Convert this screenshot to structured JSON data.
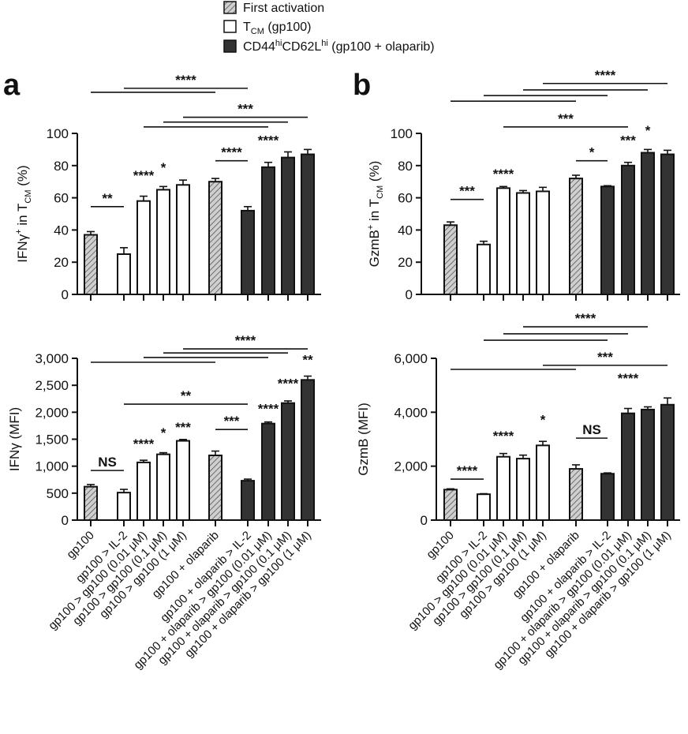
{
  "legend": {
    "items": [
      {
        "label": "First activation",
        "style": "hatched"
      },
      {
        "main": "T",
        "sub": "CM",
        "end": " (gp100)",
        "style": "white"
      },
      {
        "main": "CD44",
        "sup1": "hi",
        "mid": "CD62L",
        "sup2": "hi",
        "end": " (gp100 + olaparib)",
        "style": "dark"
      }
    ]
  },
  "panels": [
    "a",
    "b"
  ],
  "colors": {
    "hatched_fill": "#cfcfcf",
    "dark_fill": "#333333",
    "white_fill": "#ffffff",
    "triangle_points": "#8c8c8c",
    "stroke": "#111111"
  },
  "chart_data": [
    {
      "type": "bar",
      "panel": "a",
      "ylabel": {
        "main": "IFNγ",
        "sup": "+",
        "mid": " in T",
        "sub": "CM",
        "end": " (%)"
      },
      "ylim": [
        0,
        100
      ],
      "yticks": [
        {
          "v": 0,
          "label": "0"
        },
        {
          "v": 20,
          "label": "20"
        },
        {
          "v": 40,
          "label": "40"
        },
        {
          "v": 60,
          "label": "60"
        },
        {
          "v": 80,
          "label": "80"
        },
        {
          "v": 100,
          "label": "100"
        }
      ],
      "categories": [
        "gp100",
        "gp100 > IL-2",
        "gp100 > gp100 (0.01 μM)",
        "gp100 > gp100 (0.1 μM)",
        "gp100 > gp100 (1 μM)",
        "gp100 + olaparib",
        "gp100 + olaparib > IL-2",
        "gp100 + olaparib > gp100 (0.01 μM)",
        "gp100 + olaparib > gp100 (0.1 μM)",
        "gp100 + olaparib > gp100 (1 μM)"
      ],
      "styles": [
        "hatched",
        "white",
        "white",
        "white",
        "white",
        "hatched",
        "dark",
        "dark",
        "dark",
        "dark"
      ],
      "show_category_labels": false,
      "values": [
        37,
        25,
        58,
        65,
        68,
        70,
        52,
        79,
        85,
        87
      ],
      "sem": [
        2,
        4,
        3,
        2,
        3,
        2,
        2.5,
        3,
        3.5,
        3
      ],
      "brackets": [
        {
          "from": 0,
          "to": 5,
          "y": 125.5,
          "label": ""
        },
        {
          "from": 1,
          "to": 6,
          "y": 128,
          "label": "****"
        },
        {
          "from": 2,
          "to": 7,
          "y": 104,
          "label": ""
        },
        {
          "from": 3,
          "to": 8,
          "y": 107,
          "label": ""
        },
        {
          "from": 4,
          "to": 9,
          "y": 110,
          "label": "***"
        },
        {
          "from": 0,
          "to": 1,
          "y": 54.5,
          "label": "**"
        },
        {
          "from": 5,
          "to": 6,
          "y": 83,
          "label": "****"
        }
      ],
      "bar_labels": [
        {
          "cat": 2,
          "y": 71,
          "label": "****"
        },
        {
          "cat": 3,
          "y": 76,
          "label": "*"
        },
        {
          "cat": 7,
          "y": 93,
          "label": "****"
        }
      ]
    },
    {
      "type": "bar",
      "panel": "a",
      "ylabel": {
        "main": "IFNγ (MFI)"
      },
      "ylim": [
        0,
        3000
      ],
      "yticks": [
        {
          "v": 0,
          "label": "0"
        },
        {
          "v": 500,
          "label": "500"
        },
        {
          "v": 1000,
          "label": "1,000"
        },
        {
          "v": 1500,
          "label": "1,500"
        },
        {
          "v": 2000,
          "label": "2,000"
        },
        {
          "v": 2500,
          "label": "2,500"
        },
        {
          "v": 3000,
          "label": "3,000"
        }
      ],
      "categories": [
        "gp100",
        "gp100 > IL-2",
        "gp100 > gp100 (0.01 μM)",
        "gp100 > gp100 (0.1 μM)",
        "gp100 > gp100 (1 μM)",
        "gp100 + olaparib",
        "gp100 + olaparib > IL-2",
        "gp100 + olaparib > gp100 (0.01 μM)",
        "gp100 + olaparib > gp100 (0.1 μM)",
        "gp100 + olaparib > gp100 (1 μM)"
      ],
      "styles": [
        "hatched",
        "white",
        "white",
        "white",
        "white",
        "hatched",
        "dark",
        "dark",
        "dark",
        "dark"
      ],
      "show_category_labels": true,
      "values": [
        620,
        510,
        1070,
        1220,
        1470,
        1200,
        730,
        1790,
        2170,
        2600
      ],
      "sem": [
        40,
        60,
        40,
        30,
        25,
        80,
        30,
        30,
        40,
        70
      ],
      "brackets": [
        {
          "from": 0,
          "to": 5,
          "y": 2927,
          "label": ""
        },
        {
          "from": 2,
          "to": 7,
          "y": 3015,
          "label": ""
        },
        {
          "from": 3,
          "to": 8,
          "y": 3100,
          "label": ""
        },
        {
          "from": 4,
          "to": 9,
          "y": 3175,
          "label": "****"
        },
        {
          "from": 1,
          "to": 6,
          "y": 2150,
          "label": "**"
        },
        {
          "from": 0,
          "to": 1,
          "y": 920,
          "label": "NS"
        },
        {
          "from": 5,
          "to": 6,
          "y": 1680,
          "label": "***"
        }
      ],
      "bar_labels": [
        {
          "cat": 2,
          "y": 1330,
          "label": "****"
        },
        {
          "cat": 3,
          "y": 1540,
          "label": "*"
        },
        {
          "cat": 4,
          "y": 1640,
          "label": "***"
        },
        {
          "cat": 7,
          "y": 1980,
          "label": "****"
        },
        {
          "cat": 8,
          "y": 2450,
          "label": "****"
        },
        {
          "cat": 9,
          "y": 2890,
          "label": "**"
        }
      ]
    },
    {
      "type": "bar",
      "panel": "b",
      "ylabel": {
        "main": "GzmB",
        "sup": "+",
        "mid": " in T",
        "sub": "CM",
        "end": " (%)"
      },
      "ylim": [
        0,
        100
      ],
      "yticks": [
        {
          "v": 0,
          "label": "0"
        },
        {
          "v": 20,
          "label": "20"
        },
        {
          "v": 40,
          "label": "40"
        },
        {
          "v": 60,
          "label": "60"
        },
        {
          "v": 80,
          "label": "80"
        },
        {
          "v": 100,
          "label": "100"
        }
      ],
      "categories": [
        "gp100",
        "gp100 > IL-2",
        "gp100 > gp100 (0.01 μM)",
        "gp100 > gp100 (0.1 μM)",
        "gp100 > gp100 (1 μM)",
        "gp100 + olaparib",
        "gp100 + olaparib > IL-2",
        "gp100 + olaparib > gp100 (0.01 μM)",
        "gp100 + olaparib > gp100 (0.1 μM)",
        "gp100 + olaparib > gp100 (1 μM)"
      ],
      "styles": [
        "hatched",
        "white",
        "white",
        "white",
        "white",
        "hatched",
        "dark",
        "dark",
        "dark",
        "dark"
      ],
      "show_category_labels": false,
      "values": [
        43,
        31,
        66,
        63,
        64,
        72,
        67,
        80,
        88,
        87
      ],
      "sem": [
        2,
        2,
        1,
        1.5,
        2.5,
        2,
        0.5,
        2,
        2,
        2.5
      ],
      "brackets": [
        {
          "from": 0,
          "to": 5,
          "y": 120,
          "label": ""
        },
        {
          "from": 1,
          "to": 6,
          "y": 123.5,
          "label": ""
        },
        {
          "from": 3,
          "to": 8,
          "y": 127,
          "label": ""
        },
        {
          "from": 4,
          "to": 9,
          "y": 131,
          "label": "****"
        },
        {
          "from": 2,
          "to": 7,
          "y": 104,
          "label": "***"
        },
        {
          "from": 0,
          "to": 1,
          "y": 59,
          "label": "***"
        },
        {
          "from": 5,
          "to": 6,
          "y": 83,
          "label": "*"
        }
      ],
      "bar_labels": [
        {
          "cat": 2,
          "y": 72,
          "label": "****"
        },
        {
          "cat": 7,
          "y": 93,
          "label": "***"
        },
        {
          "cat": 8,
          "y": 99,
          "label": "*"
        }
      ]
    },
    {
      "type": "bar",
      "panel": "b",
      "ylabel": {
        "main": "GzmB (MFI)"
      },
      "ylim": [
        0,
        6000
      ],
      "yticks": [
        {
          "v": 0,
          "label": "0"
        },
        {
          "v": 2000,
          "label": "2,000"
        },
        {
          "v": 4000,
          "label": "4,000"
        },
        {
          "v": 6000,
          "label": "6,000"
        }
      ],
      "categories": [
        "gp100",
        "gp100 > IL-2",
        "gp100 > gp100 (0.01 μM)",
        "gp100 > gp100 (0.1 μM)",
        "gp100 > gp100 (1 μM)",
        "gp100 + olaparib",
        "gp100 + olaparib > IL-2",
        "gp100 + olaparib > gp100 (0.01 μM)",
        "gp100 + olaparib > gp100 (0.1 μM)",
        "gp100 + olaparib > gp100 (1 μM)"
      ],
      "styles": [
        "hatched",
        "white",
        "white",
        "white",
        "white",
        "hatched",
        "dark",
        "dark",
        "dark",
        "dark"
      ],
      "show_category_labels": true,
      "values": [
        1130,
        960,
        2350,
        2280,
        2770,
        1900,
        1720,
        3960,
        4100,
        4280
      ],
      "sem": [
        30,
        20,
        120,
        130,
        150,
        150,
        30,
        180,
        100,
        250
      ],
      "brackets": [
        {
          "from": 0,
          "to": 5,
          "y": 5590,
          "label": ""
        },
        {
          "from": 1,
          "to": 6,
          "y": 6670,
          "label": ""
        },
        {
          "from": 2,
          "to": 7,
          "y": 6910,
          "label": ""
        },
        {
          "from": 3,
          "to": 8,
          "y": 7170,
          "label": "****"
        },
        {
          "from": 4,
          "to": 9,
          "y": 5740,
          "label": "***"
        },
        {
          "from": 0,
          "to": 1,
          "y": 1520,
          "label": "****"
        },
        {
          "from": 5,
          "to": 6,
          "y": 3040,
          "label": "NS"
        }
      ],
      "bar_labels": [
        {
          "cat": 2,
          "y": 2950,
          "label": "****"
        },
        {
          "cat": 4,
          "y": 3550,
          "label": "*"
        },
        {
          "cat": 7,
          "y": 5100,
          "label": "****"
        }
      ]
    }
  ]
}
